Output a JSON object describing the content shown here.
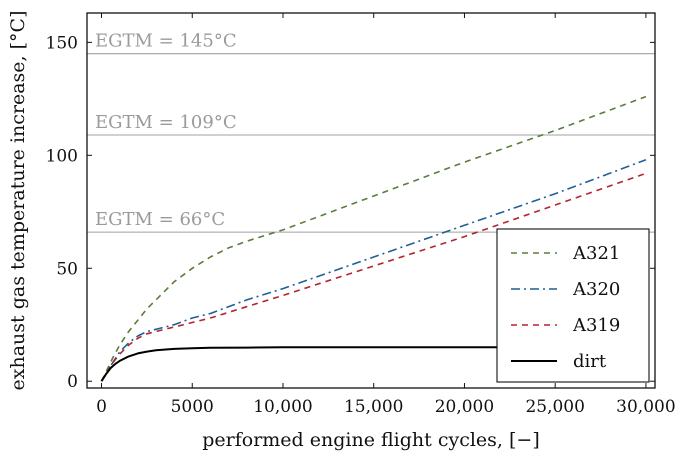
{
  "chart_data": {
    "type": "line",
    "xlabel": "performed engine flight cycles, [−]",
    "ylabel": "exhaust gas temperature increase, [°C]",
    "xlim": [
      -800,
      30500
    ],
    "ylim": [
      -3,
      163
    ],
    "x_ticks": [
      0,
      5000,
      10000,
      15000,
      20000,
      25000,
      30000
    ],
    "x_tick_labels": [
      "0",
      "5000",
      "10,000",
      "15,000",
      "20,000",
      "25,000",
      "30,000"
    ],
    "y_ticks": [
      0,
      50,
      100,
      150
    ],
    "y_tick_labels": [
      "0",
      "50",
      "100",
      "150"
    ],
    "grid": false,
    "legend_position": "lower-right",
    "reference_lines": [
      {
        "y": 145,
        "label": "EGTM = 145°C",
        "color": "#a0a0a0"
      },
      {
        "y": 109,
        "label": "EGTM = 109°C",
        "color": "#a0a0a0"
      },
      {
        "y": 66,
        "label": "EGTM = 66°C",
        "color": "#a0a0a0"
      }
    ],
    "series": [
      {
        "name": "A321",
        "color": "#5a7d3a",
        "dash": "6,5",
        "x": [
          0,
          300,
          600,
          1000,
          1500,
          2000,
          2500,
          3000,
          4000,
          5000,
          6000,
          7000,
          8000,
          10000,
          15000,
          20000,
          25000,
          30000
        ],
        "y": [
          0,
          5,
          10,
          16,
          22,
          27,
          32,
          36,
          44,
          50,
          55,
          59,
          62,
          67,
          82,
          97,
          111,
          126
        ]
      },
      {
        "name": "A320",
        "color": "#1f5f95",
        "dash": "9,4,2,4",
        "x": [
          0,
          300,
          600,
          1000,
          1500,
          2000,
          2500,
          3000,
          4000,
          5000,
          6000,
          8000,
          10000,
          15000,
          20000,
          25000,
          30000
        ],
        "y": [
          0,
          4,
          8,
          13,
          17,
          20,
          22,
          23,
          25,
          28,
          30,
          36,
          41,
          55,
          69,
          83,
          98
        ]
      },
      {
        "name": "A319",
        "color": "#b5242d",
        "dash": "6,5",
        "x": [
          0,
          300,
          600,
          1000,
          1500,
          2000,
          2500,
          3000,
          4000,
          5000,
          6000,
          8000,
          10000,
          15000,
          20000,
          25000,
          30000
        ],
        "y": [
          0,
          4,
          8,
          12,
          16,
          19,
          21,
          22,
          24,
          26,
          28,
          33,
          38,
          51,
          64,
          78,
          92
        ]
      },
      {
        "name": "dirt",
        "color": "#000000",
        "dash": "",
        "x": [
          0,
          250,
          500,
          750,
          1000,
          1500,
          2000,
          2500,
          3000,
          4000,
          5000,
          6000,
          8000,
          10000,
          15000,
          20000,
          22000
        ],
        "y": [
          0,
          3.2,
          5.8,
          7.6,
          9.0,
          11.0,
          12.3,
          13.1,
          13.7,
          14.3,
          14.6,
          14.8,
          14.9,
          15.0,
          15.0,
          15.0,
          15.0
        ]
      }
    ]
  }
}
